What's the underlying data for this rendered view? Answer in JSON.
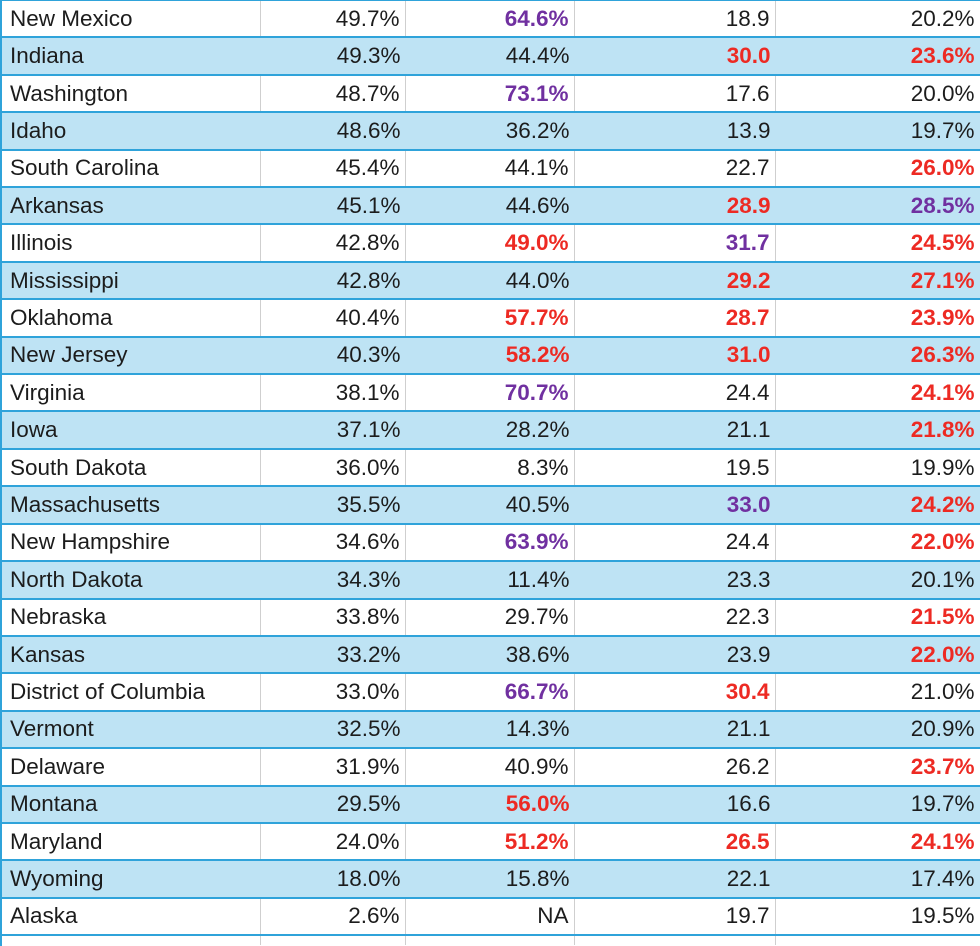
{
  "colors": {
    "band_fill": "#bee3f4",
    "row_border_blue": "#2fa3da",
    "grid_line_gray": "#cfcfcf",
    "text_black": "#1c1c1c",
    "text_red": "#ed2a23",
    "text_purple": "#7030a0"
  },
  "table": {
    "visible_header": false,
    "rows": [
      {
        "state": "New Mexico",
        "cells": [
          {
            "text": "49.7%",
            "color": "black"
          },
          {
            "text": "64.6%",
            "color": "purple"
          },
          {
            "text": "18.9",
            "color": "black"
          },
          {
            "text": "20.2%",
            "color": "black"
          }
        ]
      },
      {
        "state": "Indiana",
        "cells": [
          {
            "text": "49.3%",
            "color": "black"
          },
          {
            "text": "44.4%",
            "color": "black"
          },
          {
            "text": "30.0",
            "color": "red"
          },
          {
            "text": "23.6%",
            "color": "red"
          }
        ]
      },
      {
        "state": "Washington",
        "cells": [
          {
            "text": "48.7%",
            "color": "black"
          },
          {
            "text": "73.1%",
            "color": "purple"
          },
          {
            "text": "17.6",
            "color": "black"
          },
          {
            "text": "20.0%",
            "color": "black"
          }
        ]
      },
      {
        "state": "Idaho",
        "cells": [
          {
            "text": "48.6%",
            "color": "black"
          },
          {
            "text": "36.2%",
            "color": "black"
          },
          {
            "text": "13.9",
            "color": "black"
          },
          {
            "text": "19.7%",
            "color": "black"
          }
        ]
      },
      {
        "state": "South Carolina",
        "cells": [
          {
            "text": "45.4%",
            "color": "black"
          },
          {
            "text": "44.1%",
            "color": "black"
          },
          {
            "text": "22.7",
            "color": "black"
          },
          {
            "text": "26.0%",
            "color": "red"
          }
        ]
      },
      {
        "state": "Arkansas",
        "cells": [
          {
            "text": "45.1%",
            "color": "black"
          },
          {
            "text": "44.6%",
            "color": "black"
          },
          {
            "text": "28.9",
            "color": "red"
          },
          {
            "text": "28.5%",
            "color": "purple"
          }
        ]
      },
      {
        "state": "Illinois",
        "cells": [
          {
            "text": "42.8%",
            "color": "black"
          },
          {
            "text": "49.0%",
            "color": "red"
          },
          {
            "text": "31.7",
            "color": "purple"
          },
          {
            "text": "24.5%",
            "color": "red"
          }
        ]
      },
      {
        "state": "Mississippi",
        "cells": [
          {
            "text": "42.8%",
            "color": "black"
          },
          {
            "text": "44.0%",
            "color": "black"
          },
          {
            "text": "29.2",
            "color": "red"
          },
          {
            "text": "27.1%",
            "color": "red"
          }
        ]
      },
      {
        "state": "Oklahoma",
        "cells": [
          {
            "text": "40.4%",
            "color": "black"
          },
          {
            "text": "57.7%",
            "color": "red"
          },
          {
            "text": "28.7",
            "color": "red"
          },
          {
            "text": "23.9%",
            "color": "red"
          }
        ]
      },
      {
        "state": "New Jersey",
        "cells": [
          {
            "text": "40.3%",
            "color": "black"
          },
          {
            "text": "58.2%",
            "color": "red"
          },
          {
            "text": "31.0",
            "color": "red"
          },
          {
            "text": "26.3%",
            "color": "red"
          }
        ]
      },
      {
        "state": "Virginia",
        "cells": [
          {
            "text": "38.1%",
            "color": "black"
          },
          {
            "text": "70.7%",
            "color": "purple"
          },
          {
            "text": "24.4",
            "color": "black"
          },
          {
            "text": "24.1%",
            "color": "red"
          }
        ]
      },
      {
        "state": "Iowa",
        "cells": [
          {
            "text": "37.1%",
            "color": "black"
          },
          {
            "text": "28.2%",
            "color": "black"
          },
          {
            "text": "21.1",
            "color": "black"
          },
          {
            "text": "21.8%",
            "color": "red"
          }
        ]
      },
      {
        "state": "South Dakota",
        "cells": [
          {
            "text": "36.0%",
            "color": "black"
          },
          {
            "text": "8.3%",
            "color": "black"
          },
          {
            "text": "19.5",
            "color": "black"
          },
          {
            "text": "19.9%",
            "color": "black"
          }
        ]
      },
      {
        "state": "Massachusetts",
        "cells": [
          {
            "text": "35.5%",
            "color": "black"
          },
          {
            "text": "40.5%",
            "color": "black"
          },
          {
            "text": "33.0",
            "color": "purple"
          },
          {
            "text": "24.2%",
            "color": "red"
          }
        ]
      },
      {
        "state": "New Hampshire",
        "cells": [
          {
            "text": "34.6%",
            "color": "black"
          },
          {
            "text": "63.9%",
            "color": "purple"
          },
          {
            "text": "24.4",
            "color": "black"
          },
          {
            "text": "22.0%",
            "color": "red"
          }
        ]
      },
      {
        "state": "North Dakota",
        "cells": [
          {
            "text": "34.3%",
            "color": "black"
          },
          {
            "text": "11.4%",
            "color": "black"
          },
          {
            "text": "23.3",
            "color": "black"
          },
          {
            "text": "20.1%",
            "color": "black"
          }
        ]
      },
      {
        "state": "Nebraska",
        "cells": [
          {
            "text": "33.8%",
            "color": "black"
          },
          {
            "text": "29.7%",
            "color": "black"
          },
          {
            "text": "22.3",
            "color": "black"
          },
          {
            "text": "21.5%",
            "color": "red"
          }
        ]
      },
      {
        "state": "Kansas",
        "cells": [
          {
            "text": "33.2%",
            "color": "black"
          },
          {
            "text": "38.6%",
            "color": "black"
          },
          {
            "text": "23.9",
            "color": "black"
          },
          {
            "text": "22.0%",
            "color": "red"
          }
        ]
      },
      {
        "state": "District of Columbia",
        "cells": [
          {
            "text": "33.0%",
            "color": "black"
          },
          {
            "text": "66.7%",
            "color": "purple"
          },
          {
            "text": "30.4",
            "color": "red"
          },
          {
            "text": "21.0%",
            "color": "black"
          }
        ]
      },
      {
        "state": "Vermont",
        "cells": [
          {
            "text": "32.5%",
            "color": "black"
          },
          {
            "text": "14.3%",
            "color": "black"
          },
          {
            "text": "21.1",
            "color": "black"
          },
          {
            "text": "20.9%",
            "color": "black"
          }
        ]
      },
      {
        "state": "Delaware",
        "cells": [
          {
            "text": "31.9%",
            "color": "black"
          },
          {
            "text": "40.9%",
            "color": "black"
          },
          {
            "text": "26.2",
            "color": "black"
          },
          {
            "text": "23.7%",
            "color": "red"
          }
        ]
      },
      {
        "state": "Montana",
        "cells": [
          {
            "text": "29.5%",
            "color": "black"
          },
          {
            "text": "56.0%",
            "color": "red"
          },
          {
            "text": "16.6",
            "color": "black"
          },
          {
            "text": "19.7%",
            "color": "black"
          }
        ]
      },
      {
        "state": "Maryland",
        "cells": [
          {
            "text": "24.0%",
            "color": "black"
          },
          {
            "text": "51.2%",
            "color": "red"
          },
          {
            "text": "26.5",
            "color": "red"
          },
          {
            "text": "24.1%",
            "color": "red"
          }
        ]
      },
      {
        "state": "Wyoming",
        "cells": [
          {
            "text": "18.0%",
            "color": "black"
          },
          {
            "text": "15.8%",
            "color": "black"
          },
          {
            "text": "22.1",
            "color": "black"
          },
          {
            "text": "17.4%",
            "color": "black"
          }
        ]
      },
      {
        "state": "Alaska",
        "cells": [
          {
            "text": "2.6%",
            "color": "black"
          },
          {
            "text": "NA",
            "color": "black"
          },
          {
            "text": "19.7",
            "color": "black"
          },
          {
            "text": "19.5%",
            "color": "black"
          }
        ]
      }
    ]
  }
}
